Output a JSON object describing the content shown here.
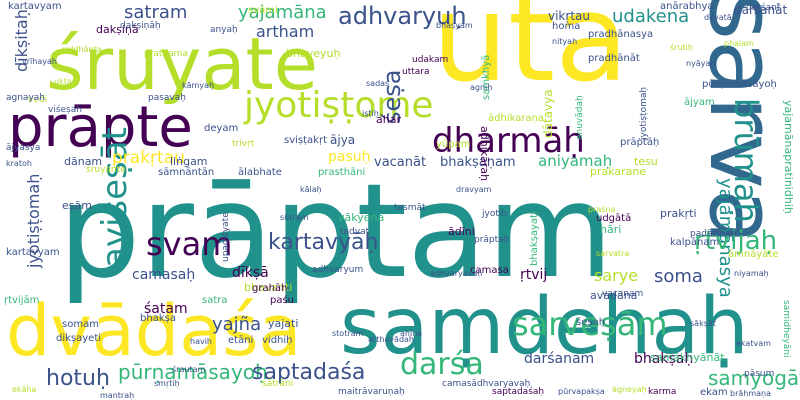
{
  "palette": {
    "background": "#ffffff",
    "purple": "#440154",
    "indigo": "#3b528b",
    "blue": "#31688e",
    "teal": "#21918c",
    "green": "#35b779",
    "lime": "#b5de2b",
    "yellow": "#fde725"
  },
  "words": [
    {
      "text": "prāptam",
      "color": "#21918c"
    },
    {
      "text": "uta",
      "color": "#fde725"
    },
    {
      "text": "sarva",
      "color": "#31688e"
    },
    {
      "text": "śruyate",
      "color": "#b5de2b"
    },
    {
      "text": "saṃdehaḥ",
      "color": "#21918c"
    },
    {
      "text": "dvādaśa",
      "color": "#fde725"
    },
    {
      "text": "prāpte",
      "color": "#440154"
    },
    {
      "text": "dharmāḥ",
      "color": "#440154"
    },
    {
      "text": "jyotiṣṭome",
      "color": "#b5de2b"
    },
    {
      "text": "adhvaryuḥ",
      "color": "#3b528b"
    },
    {
      "text": "brūmaḥ",
      "color": "#21918c"
    },
    {
      "text": "aviśeṣāt",
      "color": "#21918c"
    },
    {
      "text": "sarveṣām",
      "color": "#35b779"
    },
    {
      "text": "svam",
      "color": "#440154"
    },
    {
      "text": "yajamānasya",
      "color": "#21918c"
    },
    {
      "text": "kartavyāḥ",
      "color": "#3b528b"
    },
    {
      "text": "ṛtvijaḥ",
      "color": "#35b779"
    },
    {
      "text": "darśa",
      "color": "#35b779"
    },
    {
      "text": "hotuḥ",
      "color": "#3b528b"
    },
    {
      "text": "pūrṇamāsayoḥ",
      "color": "#35b779"
    },
    {
      "text": "saptadaśa",
      "color": "#3b528b"
    },
    {
      "text": "samyogāt",
      "color": "#35b779"
    },
    {
      "text": "udakena",
      "color": "#21918c"
    },
    {
      "text": "śeṣa",
      "color": "#3b528b"
    },
    {
      "text": "yajamāna",
      "color": "#35b779"
    },
    {
      "text": "satram",
      "color": "#3b528b"
    },
    {
      "text": "artham",
      "color": "#3b528b"
    },
    {
      "text": "dīkṣitaḥ",
      "color": "#3b528b"
    },
    {
      "text": "jyotiṣṭomaḥ",
      "color": "#3b528b"
    },
    {
      "text": "prakṛtau",
      "color": "#fde725"
    },
    {
      "text": "bhakṣaṇam",
      "color": "#3b528b"
    },
    {
      "text": "vacanāt",
      "color": "#3b528b"
    },
    {
      "text": "aniyamaḥ",
      "color": "#35b779"
    },
    {
      "text": "sarye",
      "color": "#b5de2b"
    },
    {
      "text": "soma",
      "color": "#3b528b"
    },
    {
      "text": "yajña",
      "color": "#3b528b"
    },
    {
      "text": "dīkṣā",
      "color": "#440154"
    },
    {
      "text": "camasaḥ",
      "color": "#3b528b"
    },
    {
      "text": "pasuḥ",
      "color": "#fde725"
    },
    {
      "text": "ājya",
      "color": "#3b528b"
    },
    {
      "text": "vikṛtau",
      "color": "#3b528b"
    },
    {
      "text": "darśanāt",
      "color": "#3b528b"
    },
    {
      "text": "bhakṣaḥ",
      "color": "#440154"
    },
    {
      "text": "darśanam",
      "color": "#3b528b"
    },
    {
      "text": "ṛtvij",
      "color": "#440154"
    },
    {
      "text": "śatam",
      "color": "#440154"
    },
    {
      "text": "bhaveyuḥ",
      "color": "#b5de2b"
    },
    {
      "text": "ahar",
      "color": "#440154"
    },
    {
      "text": "kartavyam",
      "color": "#3b528b"
    },
    {
      "text": "dānam",
      "color": "#3b528b"
    },
    {
      "text": "liṅgam",
      "color": "#3b528b"
    },
    {
      "text": "eṣām",
      "color": "#3b528b"
    },
    {
      "text": "śruyante",
      "color": "#b5de2b"
    },
    {
      "text": "yajati",
      "color": "#3b528b"
    },
    {
      "text": "svāmi",
      "color": "#b5de2b"
    },
    {
      "text": "homa",
      "color": "#3b528b"
    },
    {
      "text": "anārabhya",
      "color": "#3b528b"
    },
    {
      "text": "darśanī",
      "color": "#3b528b"
    },
    {
      "text": "dakṣiṇā",
      "color": "#440154"
    },
    {
      "text": "ādhikaraṇa",
      "color": "#b5de2b"
    },
    {
      "text": "prakṛti",
      "color": "#3b528b"
    },
    {
      "text": "samākhyānāt",
      "color": "#35b779"
    },
    {
      "text": "avadāna",
      "color": "#3b528b"
    },
    {
      "text": "kartavyam",
      "color": "#3b528b"
    },
    {
      "text": "ṛtvijām",
      "color": "#35b779"
    },
    {
      "text": "yajamānapratinidhiḥ",
      "color": "#35b779"
    },
    {
      "text": "pūrṇamāsayoḥ",
      "color": "#3b528b"
    },
    {
      "text": "pradhānasya",
      "color": "#3b528b"
    },
    {
      "text": "tesu",
      "color": "#b5de2b"
    },
    {
      "text": "prakarane",
      "color": "#b5de2b"
    },
    {
      "text": "prāptāḥ",
      "color": "#3b528b"
    },
    {
      "text": "ājyam",
      "color": "#35b779"
    },
    {
      "text": "prasthāni",
      "color": "#35b779"
    },
    {
      "text": "ālabhate",
      "color": "#3b528b"
    },
    {
      "text": "deyam",
      "color": "#3b528b"
    },
    {
      "text": "sviṣṭakṛt",
      "color": "#3b528b"
    },
    {
      "text": "trivṛt",
      "color": "#b5de2b"
    },
    {
      "text": "sāmnāntān",
      "color": "#3b528b"
    },
    {
      "text": "vākyena",
      "color": "#35b779"
    },
    {
      "text": "tadvat",
      "color": "#3b528b"
    },
    {
      "text": "ādīni",
      "color": "#440154"
    },
    {
      "text": "camasa",
      "color": "#440154"
    },
    {
      "text": "udgātā",
      "color": "#440154"
    },
    {
      "text": "hāri",
      "color": "#35b779"
    },
    {
      "text": "kalpānam",
      "color": "#3b528b"
    },
    {
      "text": "pāsum",
      "color": "#3b528b"
    },
    {
      "text": "ekam",
      "color": "#3b528b"
    },
    {
      "text": "pradhānāt",
      "color": "#3b528b"
    },
    {
      "text": "padārthaḥ",
      "color": "#3b528b"
    },
    {
      "text": "āmnāyāte",
      "color": "#b5de2b"
    },
    {
      "text": "bhavanti",
      "color": "#b5de2b"
    },
    {
      "text": "satra",
      "color": "#35b779"
    },
    {
      "text": "grahāh",
      "color": "#440154"
    },
    {
      "text": "paśu",
      "color": "#440154"
    },
    {
      "text": "adhvaryum",
      "color": "#3b528b"
    },
    {
      "text": "etāni",
      "color": "#3b528b"
    },
    {
      "text": "vidhiḥ",
      "color": "#3b528b"
    },
    {
      "text": "śeṣaḥ",
      "color": "#3b528b"
    },
    {
      "text": "somam",
      "color": "#3b528b"
    },
    {
      "text": "dikṣayeti",
      "color": "#3b528b"
    },
    {
      "text": "bhakṣa",
      "color": "#3b528b"
    },
    {
      "text": "sātrāni",
      "color": "#b5de2b"
    },
    {
      "text": "vedi",
      "color": "#b5de2b"
    },
    {
      "text": "agnayah",
      "color": "#3b528b"
    },
    {
      "text": "pasavaḥ",
      "color": "#3b528b"
    },
    {
      "text": "viśeṣah",
      "color": "#3b528b"
    },
    {
      "text": "prathama",
      "color": "#b5de2b"
    },
    {
      "text": "anyaḥ",
      "color": "#3b528b"
    },
    {
      "text": "ājyasya",
      "color": "#3b528b"
    },
    {
      "text": "uttara",
      "color": "#440154"
    },
    {
      "text": "udakam",
      "color": "#440154"
    },
    {
      "text": "jyotih",
      "color": "#3b528b"
    },
    {
      "text": "praśna",
      "color": "#b5de2b"
    },
    {
      "text": "kratoh",
      "color": "#3b528b"
    },
    {
      "text": "karma",
      "color": "#440154"
    },
    {
      "text": "saptadaśaḥ",
      "color": "#440154"
    },
    {
      "text": "samidheyāni",
      "color": "#35b779"
    },
    {
      "text": "upadiśyate",
      "color": "#3b528b"
    },
    {
      "text": "jyotiṣṭomaḥ",
      "color": "#3b528b"
    },
    {
      "text": "adhikāraḥ",
      "color": "#440154"
    },
    {
      "text": "anuvādaḥ",
      "color": "#35b779"
    },
    {
      "text": "samkhyā",
      "color": "#35b779"
    },
    {
      "text": "bhakṣayati",
      "color": "#35b779"
    },
    {
      "text": "dakṣiṇāḥ",
      "color": "#3b528b"
    },
    {
      "text": "tasmāt",
      "color": "#3b528b"
    },
    {
      "text": "adhvaryavaḥ",
      "color": "#3b528b"
    },
    {
      "text": "camasādhvaryavaḥ",
      "color": "#3b528b"
    },
    {
      "text": "maitrāvaruṇaḥ",
      "color": "#3b528b"
    },
    {
      "text": "brāhmaṇa",
      "color": "#3b528b"
    },
    {
      "text": "prāptaḥ",
      "color": "#3b528b"
    },
    {
      "text": "dātavya",
      "color": "#b5de2b"
    },
    {
      "text": "vacanam",
      "color": "#3b528b"
    },
    {
      "text": "stotram",
      "color": "#3b528b"
    },
    {
      "text": "sadas",
      "color": "#3b528b"
    },
    {
      "text": "śrautam",
      "color": "#3b528b"
    },
    {
      "text": "āgneyaḥ",
      "color": "#b5de2b"
    },
    {
      "text": "iṣṭiḥ",
      "color": "#3b528b"
    },
    {
      "text": "yūpam",
      "color": "#b5de2b"
    },
    {
      "text": "vrīhayah",
      "color": "#3b528b"
    },
    {
      "text": "kāmyaḥ",
      "color": "#3b528b"
    },
    {
      "text": "nityah",
      "color": "#3b528b"
    },
    {
      "text": "phalam",
      "color": "#b5de2b"
    },
    {
      "text": "niyamaḥ",
      "color": "#3b528b"
    },
    {
      "text": "agniḥ",
      "color": "#3b528b"
    },
    {
      "text": "sākṣāt",
      "color": "#3b528b"
    },
    {
      "text": "uktam",
      "color": "#b5de2b"
    },
    {
      "text": "havih",
      "color": "#3b528b"
    },
    {
      "text": "ekāha",
      "color": "#b5de2b"
    },
    {
      "text": "ahīna",
      "color": "#3b528b"
    },
    {
      "text": "kālaḥ",
      "color": "#3b528b"
    },
    {
      "text": "dravyam",
      "color": "#3b528b"
    },
    {
      "text": "devatā",
      "color": "#3b528b"
    },
    {
      "text": "śrutiḥ",
      "color": "#b5de2b"
    },
    {
      "text": "smṛtiḥ",
      "color": "#3b528b"
    },
    {
      "text": "arthavādah",
      "color": "#3b528b"
    },
    {
      "text": "mantraḥ",
      "color": "#3b528b"
    },
    {
      "text": "pūrvapakṣa",
      "color": "#3b528b"
    },
    {
      "text": "siddhānta",
      "color": "#b5de2b"
    },
    {
      "text": "nyāyaḥ",
      "color": "#3b528b"
    },
    {
      "text": "sūtram",
      "color": "#3b528b"
    },
    {
      "text": "bhāṣyam",
      "color": "#3b528b"
    },
    {
      "text": "sarvatra",
      "color": "#b5de2b"
    },
    {
      "text": "ekatvam",
      "color": "#3b528b"
    }
  ]
}
